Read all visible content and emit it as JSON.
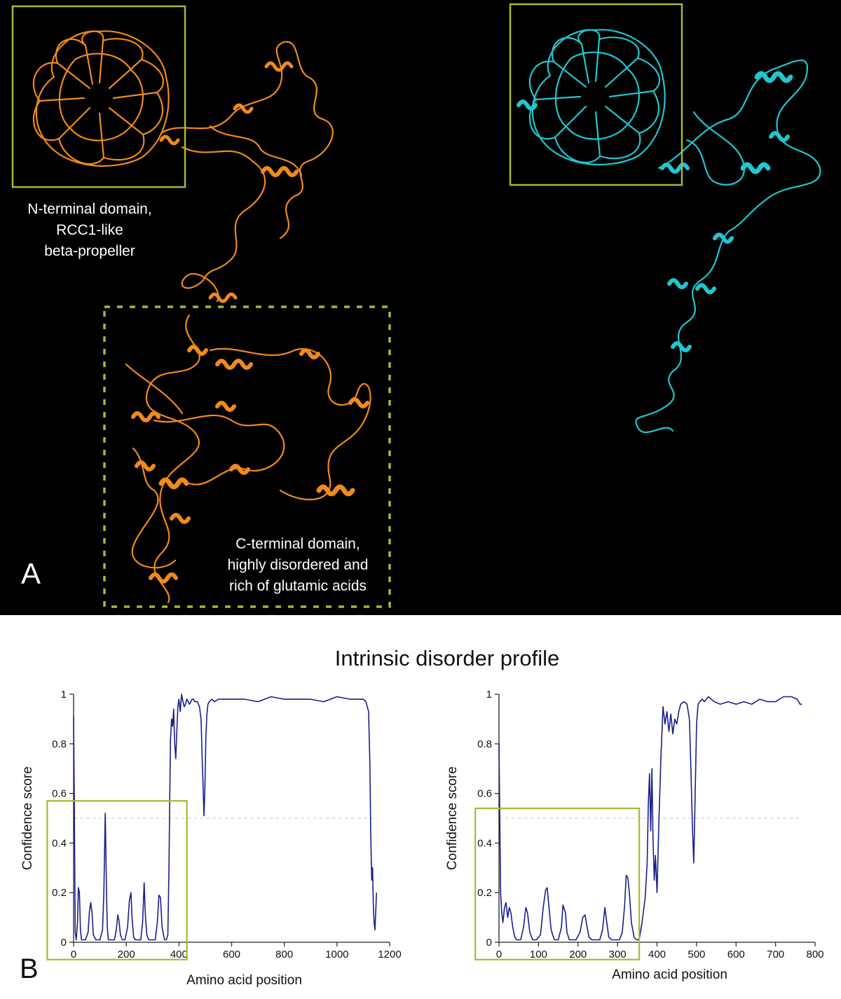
{
  "panel_a": {
    "letter": "A",
    "background": "#000000",
    "box_color": "#a8b832",
    "left_structure_color": "#f08a1c",
    "right_structure_color": "#22c6cf",
    "n_terminal_label": [
      "N-terminal domain,",
      "RCC1-like",
      "beta-propeller"
    ],
    "c_terminal_label": [
      "C-terminal domain,",
      "highly disordered and",
      "rich of glutamic acids"
    ]
  },
  "panel_b": {
    "letter": "B",
    "title": "Intrinsic disorder profile",
    "line_color": "#1a1f8c",
    "threshold_color": "#b8c4d8",
    "box_color": "#a8b832"
  },
  "chart_data": [
    {
      "type": "line",
      "xlabel": "Amino acid position",
      "ylabel": "Confidence score",
      "xlim": [
        0,
        1200
      ],
      "ylim": [
        0,
        1
      ],
      "xticks": [
        0,
        200,
        400,
        600,
        800,
        1000,
        1200
      ],
      "yticks": [
        0,
        0.2,
        0.4,
        0.6,
        0.8,
        1
      ],
      "ytick_labels": [
        "0",
        "0.2",
        "0.4",
        "0.6",
        "0.8",
        "1"
      ],
      "threshold": 0.5,
      "highlight_x": [
        -100,
        430
      ],
      "highlight_y": [
        -0.07,
        0.57
      ],
      "x": [
        0,
        3,
        6,
        10,
        15,
        18,
        22,
        26,
        30,
        35,
        45,
        55,
        60,
        65,
        70,
        75,
        85,
        100,
        110,
        115,
        118,
        120,
        122,
        125,
        128,
        132,
        140,
        155,
        162,
        168,
        172,
        178,
        185,
        195,
        205,
        212,
        218,
        222,
        228,
        235,
        245,
        255,
        262,
        268,
        272,
        278,
        285,
        295,
        310,
        318,
        324,
        330,
        336,
        345,
        352,
        358,
        362,
        365,
        368,
        372,
        376,
        380,
        384,
        388,
        392,
        396,
        400,
        405,
        410,
        415,
        420,
        425,
        430,
        435,
        440,
        445,
        450,
        455,
        460,
        470,
        478,
        484,
        488,
        492,
        495,
        498,
        502,
        506,
        510,
        515,
        525,
        535,
        550,
        600,
        650,
        700,
        750,
        800,
        850,
        900,
        950,
        1000,
        1050,
        1080,
        1100,
        1110,
        1120,
        1125,
        1128,
        1132,
        1135,
        1138,
        1141,
        1144,
        1147,
        1150
      ],
      "y": [
        0.91,
        0.55,
        0.04,
        0.01,
        0.08,
        0.22,
        0.2,
        0.05,
        0.01,
        0.01,
        0.01,
        0.04,
        0.12,
        0.16,
        0.12,
        0.03,
        0.01,
        0.01,
        0.05,
        0.2,
        0.38,
        0.52,
        0.4,
        0.2,
        0.06,
        0.01,
        0.01,
        0.01,
        0.05,
        0.11,
        0.09,
        0.03,
        0.01,
        0.01,
        0.06,
        0.17,
        0.2,
        0.1,
        0.02,
        0.01,
        0.01,
        0.01,
        0.08,
        0.24,
        0.12,
        0.03,
        0.01,
        0.01,
        0.01,
        0.08,
        0.19,
        0.18,
        0.06,
        0.01,
        0.01,
        0.03,
        0.3,
        0.58,
        0.82,
        0.9,
        0.87,
        0.94,
        0.8,
        0.74,
        0.85,
        0.95,
        0.98,
        0.93,
        1.0,
        0.97,
        0.95,
        0.96,
        0.98,
        0.97,
        0.96,
        0.97,
        0.98,
        0.98,
        0.97,
        0.97,
        0.95,
        0.9,
        0.75,
        0.62,
        0.51,
        0.6,
        0.82,
        0.92,
        0.96,
        0.97,
        0.98,
        0.97,
        0.98,
        0.98,
        0.98,
        0.97,
        0.99,
        0.98,
        0.98,
        0.98,
        0.97,
        0.99,
        0.98,
        0.98,
        0.98,
        0.97,
        0.93,
        0.72,
        0.45,
        0.25,
        0.3,
        0.15,
        0.08,
        0.05,
        0.12,
        0.2
      ]
    },
    {
      "type": "line",
      "xlabel": "Amino acid position",
      "ylabel": "Confidence score",
      "xlim": [
        0,
        800
      ],
      "ylim": [
        0,
        1
      ],
      "xticks": [
        0,
        100,
        200,
        300,
        400,
        500,
        600,
        700,
        800
      ],
      "yticks": [
        0,
        0.2,
        0.4,
        0.6,
        0.8,
        1
      ],
      "ytick_labels": [
        "0",
        "0.2",
        "0.4",
        "0.6",
        "0.8",
        "1"
      ],
      "threshold": 0.5,
      "highlight_x": [
        -60,
        355
      ],
      "highlight_y": [
        -0.07,
        0.54
      ],
      "x": [
        0,
        2,
        4,
        7,
        10,
        14,
        18,
        22,
        26,
        30,
        35,
        40,
        45,
        55,
        62,
        68,
        72,
        78,
        85,
        95,
        105,
        112,
        118,
        122,
        126,
        132,
        140,
        150,
        158,
        162,
        168,
        172,
        178,
        185,
        195,
        205,
        212,
        218,
        222,
        228,
        235,
        245,
        255,
        262,
        268,
        272,
        278,
        285,
        295,
        305,
        312,
        318,
        322,
        326,
        330,
        335,
        342,
        348,
        352,
        356,
        362,
        370,
        375,
        378,
        381,
        384,
        387,
        390,
        393,
        396,
        400,
        405,
        410,
        415,
        420,
        425,
        430,
        435,
        440,
        445,
        450,
        455,
        460,
        468,
        476,
        482,
        486,
        490,
        493,
        496,
        500,
        504,
        508,
        514,
        520,
        530,
        545,
        560,
        580,
        600,
        620,
        640,
        660,
        680,
        700,
        720,
        740,
        755,
        762,
        767
      ],
      "y": [
        0.8,
        0.5,
        0.2,
        0.12,
        0.08,
        0.14,
        0.16,
        0.1,
        0.14,
        0.12,
        0.06,
        0.02,
        0.01,
        0.01,
        0.06,
        0.14,
        0.12,
        0.04,
        0.01,
        0.01,
        0.03,
        0.14,
        0.21,
        0.22,
        0.15,
        0.05,
        0.01,
        0.01,
        0.06,
        0.15,
        0.12,
        0.04,
        0.01,
        0.01,
        0.01,
        0.04,
        0.1,
        0.11,
        0.07,
        0.02,
        0.01,
        0.01,
        0.01,
        0.05,
        0.14,
        0.09,
        0.02,
        0.01,
        0.01,
        0.01,
        0.04,
        0.15,
        0.27,
        0.26,
        0.2,
        0.08,
        0.02,
        0.01,
        0.01,
        0.02,
        0.08,
        0.18,
        0.32,
        0.56,
        0.68,
        0.45,
        0.7,
        0.4,
        0.25,
        0.35,
        0.2,
        0.5,
        0.75,
        0.95,
        0.88,
        0.93,
        0.85,
        0.92,
        0.84,
        0.9,
        0.88,
        0.93,
        0.96,
        0.97,
        0.96,
        0.9,
        0.68,
        0.45,
        0.32,
        0.55,
        0.88,
        0.96,
        0.97,
        0.98,
        0.97,
        0.99,
        0.97,
        0.96,
        0.97,
        0.96,
        0.97,
        0.96,
        0.98,
        0.97,
        0.97,
        0.99,
        0.99,
        0.98,
        0.96,
        0.96
      ]
    }
  ]
}
